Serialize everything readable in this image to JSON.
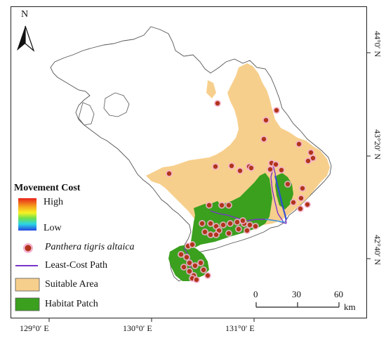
{
  "north_arrow": {
    "label": "N"
  },
  "x_axis": {
    "ticks": [
      "129°0′ E",
      "130°0′ E",
      "131°0′ E"
    ]
  },
  "y_axis": {
    "ticks": [
      "44°0′ N",
      "43°20′ N",
      "42°40′ N"
    ]
  },
  "legend": {
    "title": "Movement Cost",
    "gradient_high": "High",
    "gradient_low": "Low",
    "tiger_label": "Panthera tigris altaica",
    "path_label": "Least-Cost Path",
    "suitable_label": "Suitable Area",
    "habitat_label": "Habitat Patch"
  },
  "scale_bar": {
    "ticks": [
      "0",
      "30",
      "60"
    ],
    "unit": "km"
  },
  "colors": {
    "suitable": "#f7cf8c",
    "habitat": "#3aa01e",
    "tiger_fill": "#b1341b",
    "tiger_halo": "#f3b2d0",
    "path": "#7a35c9",
    "outline": "#555555"
  }
}
